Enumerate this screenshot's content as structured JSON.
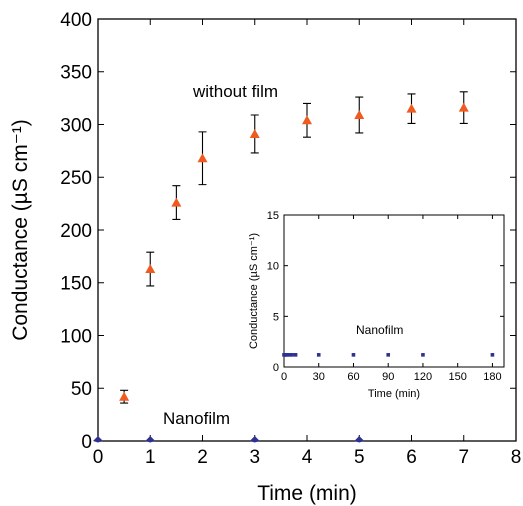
{
  "chart_data": [
    {
      "type": "scatter",
      "xlabel": "Time (min)",
      "ylabel": "Conductance (µS cm⁻¹)",
      "xlim": [
        0,
        8
      ],
      "ylim": [
        0,
        400
      ],
      "x_ticks": [
        "0",
        "1",
        "2",
        "3",
        "4",
        "5",
        "6",
        "7",
        "8"
      ],
      "y_ticks": [
        "0",
        "50",
        "100",
        "150",
        "200",
        "250",
        "300",
        "350",
        "400"
      ],
      "grid": false,
      "series": [
        {
          "name": "without film",
          "marker": "triangle",
          "color": "#f05a1e",
          "x": [
            0.5,
            1,
            1.5,
            2,
            3,
            4,
            5,
            6,
            7
          ],
          "y": [
            42,
            163,
            226,
            268,
            291,
            304,
            309,
            315,
            316
          ],
          "error": [
            6,
            16,
            16,
            25,
            18,
            16,
            17,
            14,
            15
          ]
        },
        {
          "name": "Nanofilm",
          "marker": "circle",
          "color": "#2e3192",
          "x": [
            0,
            1,
            3,
            5
          ],
          "y": [
            0,
            0,
            0,
            0
          ]
        }
      ]
    },
    {
      "type": "scatter",
      "inset": true,
      "xlabel": "Time (min)",
      "ylabel": "Conductance (µS cm⁻¹)",
      "xlim": [
        0,
        190
      ],
      "ylim": [
        0,
        15
      ],
      "x_ticks": [
        "0",
        "30",
        "60",
        "90",
        "120",
        "150",
        "180"
      ],
      "y_ticks": [
        "0",
        "5",
        "10",
        "15"
      ],
      "series": [
        {
          "name": "Nanofilm",
          "marker": "square",
          "color": "#2e3192",
          "x": [
            0,
            1,
            2,
            3,
            5,
            7,
            10,
            30,
            60,
            90,
            120,
            180
          ],
          "y": [
            1.2,
            1.2,
            1.2,
            1.2,
            1.2,
            1.2,
            1.2,
            1.2,
            1.2,
            1.2,
            1.2,
            1.2
          ]
        }
      ]
    }
  ]
}
